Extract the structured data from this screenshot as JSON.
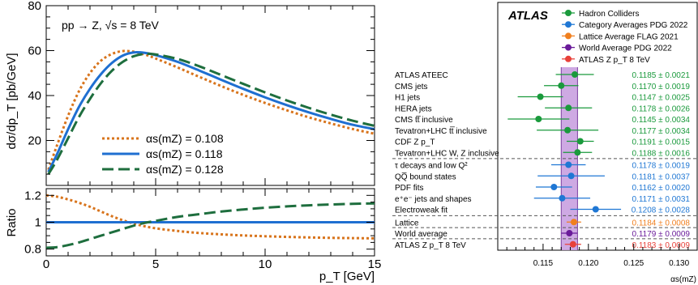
{
  "left_panel": {
    "process_label": "pp → Z, √s = 8 TeV",
    "ylabel": "dσ/dp_T [pb/GeV]",
    "xlabel": "p_T [GeV]",
    "ratio_ylabel": "Ratio"
  },
  "right_panel": {
    "experiment_label": "ATLAS",
    "legend": [
      {
        "label": "Hadron Colliders",
        "color": "#1a9a3c"
      },
      {
        "label": "Category Averages PDG 2022",
        "color": "#1f77d4"
      },
      {
        "label": "Lattice Average FLAG 2021",
        "color": "#f07f1e"
      },
      {
        "label": "World Average PDG 2022",
        "color": "#6a1b9a"
      },
      {
        "label": "ATLAS Z p_T 8 TeV",
        "color": "#e8413a"
      }
    ],
    "band_color": "#c9a0e0",
    "band_line_color": "#7b3fa0",
    "xlabel": "αs(mZ)"
  },
  "chart_data": [
    {
      "type": "line",
      "panel": "main",
      "title": "",
      "xlabel": "p_T [GeV]",
      "ylabel": "dσ/dp_T [pb/GeV]",
      "xlim": [
        0,
        15
      ],
      "ylim": [
        0,
        80
      ],
      "xticks": [
        0,
        5,
        10,
        15
      ],
      "yticks": [
        20,
        40,
        60,
        80
      ],
      "legend_position": "bottom-left",
      "series": [
        {
          "name": "αs(mZ) = 0.108",
          "color": "#d8741c",
          "style": "dotted",
          "x": [
            0.1,
            0.5,
            1,
            1.5,
            2,
            2.5,
            3,
            3.5,
            4,
            4.5,
            5,
            6,
            7,
            8,
            9,
            10,
            11,
            12,
            13,
            14,
            15
          ],
          "y": [
            7,
            18,
            31,
            42,
            50,
            55.5,
            58.5,
            59.8,
            59.5,
            58.3,
            56.5,
            52.5,
            48.3,
            44.2,
            40.3,
            36.7,
            33.4,
            30.3,
            27.6,
            25.1,
            23
          ]
        },
        {
          "name": "αs(mZ) = 0.118",
          "color": "#1f6fd1",
          "style": "solid",
          "x": [
            0.1,
            0.5,
            1,
            1.5,
            2,
            2.5,
            3,
            3.5,
            4,
            4.5,
            5,
            6,
            7,
            8,
            9,
            10,
            11,
            12,
            13,
            14,
            15
          ],
          "y": [
            6,
            14,
            25,
            35,
            43,
            49.5,
            54.5,
            57.8,
            59.2,
            59,
            58,
            55,
            51.1,
            47,
            43,
            39.2,
            35.7,
            32.5,
            29.6,
            27,
            25
          ]
        },
        {
          "name": "αs(mZ) = 0.128",
          "color": "#1e6e3e",
          "style": "dashed",
          "x": [
            0.1,
            0.5,
            1,
            1.5,
            2,
            2.5,
            3,
            3.5,
            4,
            4.5,
            5,
            6,
            7,
            8,
            9,
            10,
            11,
            12,
            13,
            14,
            15
          ],
          "y": [
            5,
            11.5,
            21,
            30.5,
            38.5,
            45.5,
            51,
            55,
            57.5,
            58.5,
            58.3,
            56.3,
            53,
            49.1,
            45.2,
            41.4,
            37.8,
            34.5,
            31.5,
            28.8,
            26.5
          ]
        }
      ]
    },
    {
      "type": "line",
      "panel": "ratio",
      "xlabel": "p_T [GeV]",
      "ylabel": "Ratio",
      "xlim": [
        0,
        15
      ],
      "ylim": [
        0.75,
        1.25
      ],
      "xticks": [
        0,
        5,
        10,
        15
      ],
      "xtick_labels": [
        "0",
        "5",
        "10",
        "15"
      ],
      "yticks": [
        0.8,
        1,
        1.2
      ],
      "ytick_labels": [
        "0.8",
        "1",
        "1.2"
      ],
      "series": [
        {
          "name": "αs(mZ) = 0.108",
          "color": "#d8741c",
          "style": "dotted",
          "x": [
            0,
            0.5,
            1,
            1.5,
            2,
            2.5,
            3,
            3.5,
            4,
            4.5,
            5,
            6,
            7,
            8,
            9,
            10,
            11,
            12,
            13,
            14,
            15
          ],
          "y": [
            1.2,
            1.19,
            1.17,
            1.145,
            1.115,
            1.08,
            1.045,
            1.015,
            0.99,
            0.97,
            0.955,
            0.935,
            0.92,
            0.91,
            0.902,
            0.896,
            0.891,
            0.887,
            0.884,
            0.882,
            0.88
          ]
        },
        {
          "name": "αs(mZ) = 0.118",
          "color": "#1f6fd1",
          "style": "solid",
          "x": [
            0,
            15
          ],
          "y": [
            1,
            1
          ]
        },
        {
          "name": "αs(mZ) = 0.128",
          "color": "#1e6e3e",
          "style": "dashed",
          "x": [
            0,
            0.5,
            1,
            1.5,
            2,
            2.5,
            3,
            3.5,
            4,
            4.5,
            5,
            6,
            7,
            8,
            9,
            10,
            11,
            12,
            13,
            14,
            15
          ],
          "y": [
            0.81,
            0.815,
            0.83,
            0.85,
            0.875,
            0.9,
            0.925,
            0.95,
            0.975,
            0.995,
            1.01,
            1.04,
            1.06,
            1.08,
            1.095,
            1.108,
            1.118,
            1.126,
            1.132,
            1.137,
            1.14
          ]
        }
      ]
    },
    {
      "type": "scatter",
      "panel": "alpha_s_summary",
      "xlabel": "αs(mZ)",
      "xlim": [
        0.11,
        0.132
      ],
      "xticks": [
        0.115,
        0.12,
        0.125,
        0.13
      ],
      "xtick_labels": [
        "0.115",
        "0.120",
        "0.125",
        "0.130"
      ],
      "world_average_band": {
        "center": 0.1179,
        "uncertainty": 0.0009
      },
      "points": [
        {
          "label": "ATLAS ATEEC",
          "value": 0.1185,
          "error": 0.0021,
          "text": "0.1185 ± 0.0021",
          "category": "Hadron Colliders",
          "color": "#1a9a3c"
        },
        {
          "label": "CMS jets",
          "value": 0.117,
          "error": 0.0019,
          "text": "0.1170 ± 0.0019",
          "category": "Hadron Colliders",
          "color": "#1a9a3c"
        },
        {
          "label": "H1 jets",
          "value": 0.1147,
          "error": 0.0025,
          "text": "0.1147 ± 0.0025",
          "category": "Hadron Colliders",
          "color": "#1a9a3c"
        },
        {
          "label": "HERA jets",
          "value": 0.1178,
          "error": 0.0026,
          "text": "0.1178 ± 0.0026",
          "category": "Hadron Colliders",
          "color": "#1a9a3c"
        },
        {
          "label": "CMS tt̅ inclusive",
          "value": 0.1145,
          "error": 0.0034,
          "text": "0.1145 ± 0.0034",
          "category": "Hadron Colliders",
          "color": "#1a9a3c"
        },
        {
          "label": "Tevatron+LHC tt̅ inclusive",
          "value": 0.1177,
          "error": 0.0034,
          "text": "0.1177 ± 0.0034",
          "category": "Hadron Colliders",
          "color": "#1a9a3c"
        },
        {
          "label": "CDF Z p_T",
          "value": 0.1191,
          "error": 0.0015,
          "text": "0.1191 ± 0.0015",
          "category": "Hadron Colliders",
          "color": "#1a9a3c"
        },
        {
          "label": "Tevatron+LHC W, Z inclusive",
          "value": 0.1188,
          "error": 0.0016,
          "text": "0.1188 ± 0.0016",
          "category": "Hadron Colliders",
          "color": "#1a9a3c"
        },
        {
          "label": "τ decays and low Q²",
          "value": 0.1178,
          "error": 0.0019,
          "text": "0.1178 ± 0.0019",
          "category": "Category Averages PDG 2022",
          "color": "#1f77d4"
        },
        {
          "label": "QQ̅ bound states",
          "value": 0.1181,
          "error": 0.0037,
          "text": "0.1181 ± 0.0037",
          "category": "Category Averages PDG 2022",
          "color": "#1f77d4"
        },
        {
          "label": "PDF fits",
          "value": 0.1162,
          "error": 0.002,
          "text": "0.1162 ± 0.0020",
          "category": "Category Averages PDG 2022",
          "color": "#1f77d4"
        },
        {
          "label": "e⁺e⁻ jets and shapes",
          "value": 0.1171,
          "error": 0.0031,
          "text": "0.1171 ± 0.0031",
          "category": "Category Averages PDG 2022",
          "color": "#1f77d4"
        },
        {
          "label": "Electroweak fit",
          "value": 0.1208,
          "error": 0.0028,
          "text": "0.1208 ± 0.0028",
          "category": "Category Averages PDG 2022",
          "color": "#1f77d4"
        },
        {
          "label": "Lattice",
          "value": 0.1184,
          "error": 0.0008,
          "text": "0.1184 ± 0.0008",
          "category": "Lattice Average FLAG 2021",
          "color": "#f07f1e"
        },
        {
          "label": "World average",
          "value": 0.1179,
          "error": 0.0009,
          "text": "0.1179 ± 0.0009",
          "category": "World Average PDG 2022",
          "color": "#6a1b9a"
        },
        {
          "label": "ATLAS Z p_T 8 TeV",
          "value": 0.1183,
          "error": 0.0009,
          "text": "0.1183 ± 0.0009",
          "category": "ATLAS Z p_T 8 TeV",
          "color": "#e8413a"
        }
      ]
    }
  ]
}
